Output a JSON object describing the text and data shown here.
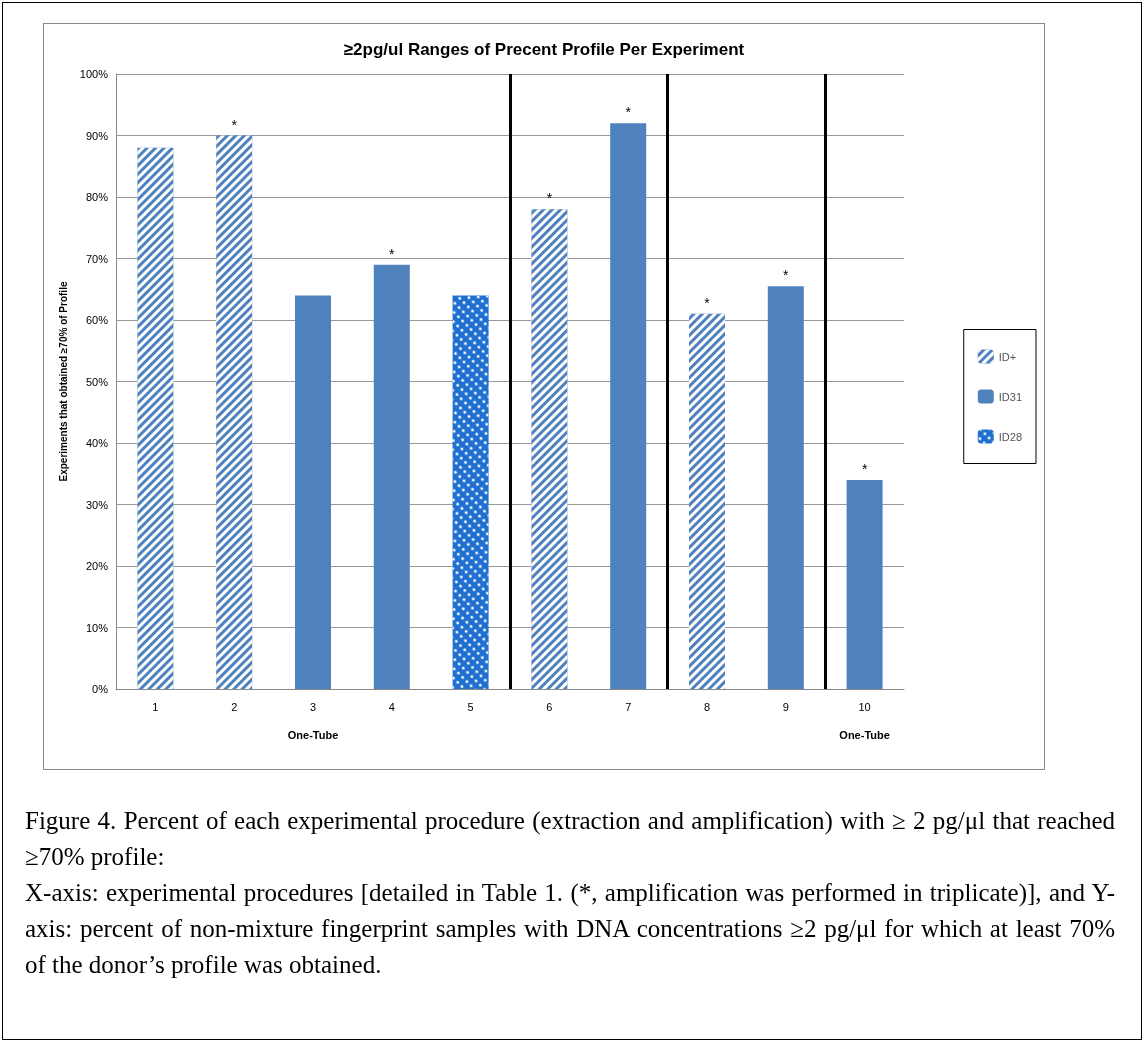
{
  "chart_data": {
    "type": "bar",
    "title": "≥2pg/ul Ranges of Precent Profile Per Experiment",
    "ylabel": "Experiments that obtained ≥70% of Profile",
    "x": [
      1,
      2,
      3,
      4,
      5,
      6,
      7,
      8,
      9,
      10
    ],
    "series": [
      {
        "name": "ID+",
        "color": "#4f81bd",
        "values": [
          88,
          90,
          null,
          null,
          null,
          78,
          null,
          61,
          null,
          null
        ]
      },
      {
        "name": "ID31",
        "color": "#4f81bd",
        "values": [
          null,
          null,
          64,
          69,
          null,
          null,
          92,
          null,
          65.5,
          34
        ]
      },
      {
        "name": "ID28",
        "color": "#1f6fd0",
        "values": [
          null,
          null,
          null,
          null,
          64,
          null,
          null,
          null,
          null,
          null
        ]
      }
    ],
    "xlim": [
      0.5,
      10.5
    ],
    "xticks": [
      1,
      2,
      3,
      4,
      5,
      6,
      7,
      8,
      9,
      10
    ],
    "ylim": [
      0,
      100
    ],
    "yticks": [
      {
        "value": 0,
        "label": "0%"
      },
      {
        "value": 10,
        "label": "10%"
      },
      {
        "value": 20,
        "label": "20%"
      },
      {
        "value": 30,
        "label": "30%"
      },
      {
        "value": 40,
        "label": "40%"
      },
      {
        "value": 50,
        "label": "50%"
      },
      {
        "value": 60,
        "label": "60%"
      },
      {
        "value": 70,
        "label": "70%"
      },
      {
        "value": 80,
        "label": "80%"
      },
      {
        "value": 90,
        "label": "90%"
      },
      {
        "value": 100,
        "label": "100%"
      }
    ],
    "ref_lines": [
      {
        "axis": "x",
        "value": 5.5,
        "color": "#000000"
      },
      {
        "axis": "x",
        "value": 7.5,
        "color": "#000000"
      },
      {
        "axis": "x",
        "value": 9.5,
        "color": "#000000"
      }
    ],
    "grid": "y",
    "legend": "right",
    "annotations": [
      {
        "text": "*",
        "x": 2,
        "y": 90
      },
      {
        "text": "*",
        "x": 4,
        "y": 69
      },
      {
        "text": "*",
        "x": 6,
        "y": 78
      },
      {
        "text": "*",
        "x": 7,
        "y": 92
      },
      {
        "text": "*",
        "x": 8,
        "y": 61
      },
      {
        "text": "*",
        "x": 9,
        "y": 65.5
      },
      {
        "text": "*",
        "x": 10,
        "y": 34
      },
      "One-Tube",
      "One-Tube",
      "Figure 4. Percent of each experimental procedure (extraction and amplification) with ≥ 2 pg/μl that reached ≥70% profile:",
      "X-axis: experimental procedures [detailed in Table 1. (*, amplification was performed in triplicate)], and Y-axis: percent of non-mixture fingerprint samples with DNA concentrations ≥2 pg/μl for which at least 70% of the donor’s profile was obtained."
    ]
  }
}
